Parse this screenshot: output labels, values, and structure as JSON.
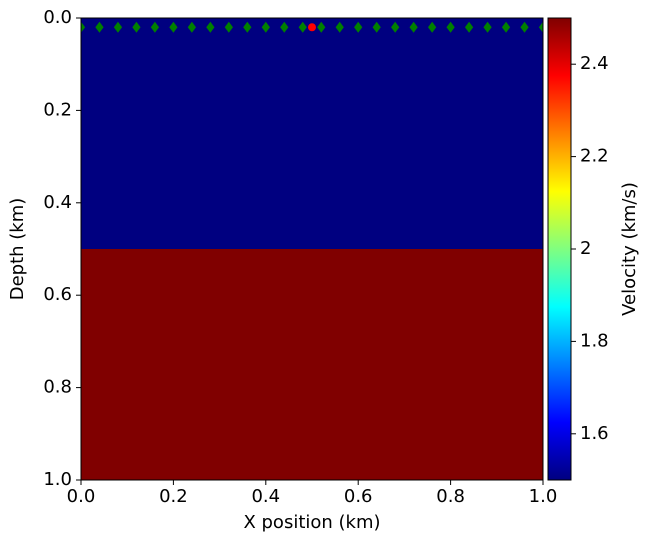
{
  "chart_data": {
    "type": "velocity_model",
    "xlabel": "X position (km)",
    "ylabel": "Depth (km)",
    "colorbar_label": "Velocity (km/s)",
    "colormap": "jet",
    "xlim": [
      0,
      1
    ],
    "xticks": [
      {
        "value": 0,
        "label": "0.0"
      },
      0.2,
      0.4,
      0.6,
      0.8,
      {
        "value": 1,
        "label": "1.0"
      }
    ],
    "ylim": [
      0,
      1
    ],
    "y_inverted": true,
    "yticks": [
      {
        "value": 0,
        "label": "0.0"
      },
      0.2,
      0.4,
      0.6,
      0.8,
      {
        "value": 1,
        "label": "1.0"
      }
    ],
    "clim": [
      1.5,
      2.5
    ],
    "cticks": [
      1.6,
      1.8,
      2.0,
      2.2,
      2.4
    ],
    "layers": {
      "depth_edges": [
        0,
        0.5,
        1
      ],
      "values": [
        1.5,
        2.5
      ]
    },
    "receivers": {
      "color": "#008000",
      "x": [
        0,
        0.04,
        0.08,
        0.12,
        0.16,
        0.2,
        0.24,
        0.28,
        0.32,
        0.36,
        0.4,
        0.44,
        0.48,
        0.52,
        0.56,
        0.6,
        0.64,
        0.68,
        0.72,
        0.76,
        0.8,
        0.84,
        0.88,
        0.92,
        0.96,
        1
      ],
      "depth": [
        0.02,
        0.02,
        0.02,
        0.02,
        0.02,
        0.02,
        0.02,
        0.02,
        0.02,
        0.02,
        0.02,
        0.02,
        0.02,
        0.02,
        0.02,
        0.02,
        0.02,
        0.02,
        0.02,
        0.02,
        0.02,
        0.02,
        0.02,
        0.02,
        0.02,
        0.02
      ]
    },
    "source": {
      "color": "#ff0000",
      "x": [
        0.5
      ],
      "depth": [
        0.02
      ]
    }
  }
}
